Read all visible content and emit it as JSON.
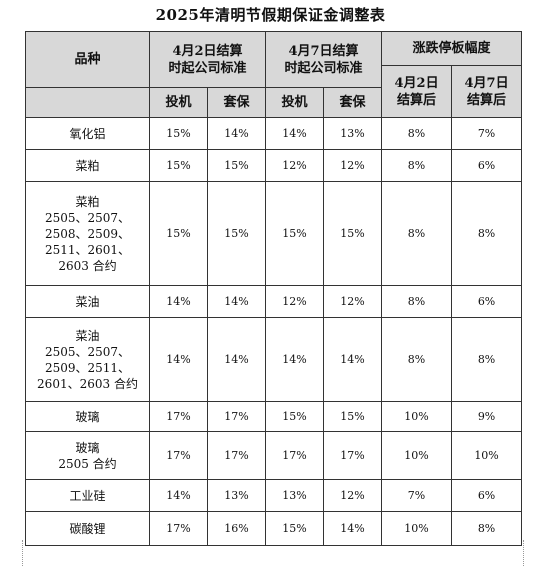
{
  "title": "2025年清明节假期保证金调整表",
  "header": {
    "variety": "品种",
    "group_apr2": [
      "4月2日结算",
      "时起公司标准"
    ],
    "group_apr7": [
      "4月7日结算",
      "时起公司标准"
    ],
    "group_limit": "涨跌停板幅度",
    "limit_apr2": [
      "4月2日",
      "结算后"
    ],
    "limit_apr7": [
      "4月7日",
      "结算后"
    ],
    "spec": "投机",
    "hedge": "套保"
  },
  "rows": [
    {
      "variety": [
        "氧化铝"
      ],
      "apr2_spec": "15%",
      "apr2_hedge": "14%",
      "apr7_spec": "14%",
      "apr7_hedge": "13%",
      "limit_apr2": "8%",
      "limit_apr7": "7%"
    },
    {
      "variety": [
        "菜粕"
      ],
      "apr2_spec": "15%",
      "apr2_hedge": "15%",
      "apr7_spec": "12%",
      "apr7_hedge": "12%",
      "limit_apr2": "8%",
      "limit_apr7": "6%"
    },
    {
      "variety": [
        "菜粕",
        "2505、2507、",
        "2508、2509、",
        "2511、2601、",
        "2603 合约"
      ],
      "apr2_spec": "15%",
      "apr2_hedge": "15%",
      "apr7_spec": "15%",
      "apr7_hedge": "15%",
      "limit_apr2": "8%",
      "limit_apr7": "8%"
    },
    {
      "variety": [
        "菜油"
      ],
      "apr2_spec": "14%",
      "apr2_hedge": "14%",
      "apr7_spec": "12%",
      "apr7_hedge": "12%",
      "limit_apr2": "8%",
      "limit_apr7": "6%"
    },
    {
      "variety": [
        "菜油",
        "2505、2507、",
        "2509、2511、",
        "2601、2603 合约"
      ],
      "apr2_spec": "14%",
      "apr2_hedge": "14%",
      "apr7_spec": "14%",
      "apr7_hedge": "14%",
      "limit_apr2": "8%",
      "limit_apr7": "8%"
    },
    {
      "variety": [
        "玻璃"
      ],
      "apr2_spec": "17%",
      "apr2_hedge": "17%",
      "apr7_spec": "15%",
      "apr7_hedge": "15%",
      "limit_apr2": "10%",
      "limit_apr7": "9%"
    },
    {
      "variety": [
        "玻璃",
        "2505 合约"
      ],
      "apr2_spec": "17%",
      "apr2_hedge": "17%",
      "apr7_spec": "17%",
      "apr7_hedge": "17%",
      "limit_apr2": "10%",
      "limit_apr7": "10%"
    },
    {
      "variety": [
        "工业硅"
      ],
      "apr2_spec": "14%",
      "apr2_hedge": "13%",
      "apr7_spec": "13%",
      "apr7_hedge": "12%",
      "limit_apr2": "7%",
      "limit_apr7": "6%"
    },
    {
      "variety": [
        "碳酸锂"
      ],
      "apr2_spec": "17%",
      "apr2_hedge": "16%",
      "apr7_spec": "15%",
      "apr7_hedge": "14%",
      "limit_apr2": "10%",
      "limit_apr7": "8%"
    }
  ]
}
